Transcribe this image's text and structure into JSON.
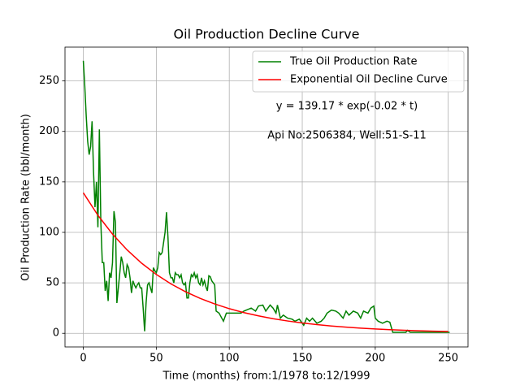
{
  "chart_data": {
    "type": "line",
    "title": "Oil Production Decline Curve",
    "x_label": "Time (months) from:1/1978 to:12/1999",
    "y_label": "Oil Production Rate (bbl/month)",
    "annotations": [
      "y = 139.17 * exp(-0.02 * t)",
      "Api No:2506384, Well:51-S-11"
    ],
    "xlim": [
      -12.55,
      263.55
    ],
    "xticks": [
      0,
      50,
      100,
      150,
      200,
      250
    ],
    "ylim": [
      -13.5,
      283.5
    ],
    "yticks": [
      0,
      50,
      100,
      150,
      200,
      250
    ],
    "grid": true,
    "legend": "upper right",
    "series": [
      {
        "name": "True Oil Production Rate",
        "color": "#008000",
        "x": [
          0,
          1,
          2,
          3,
          4,
          5,
          6,
          7,
          8,
          9,
          10,
          11,
          12,
          13,
          14,
          15,
          16,
          17,
          18,
          19,
          20,
          21,
          22,
          23,
          24,
          25,
          26,
          27,
          28,
          29,
          30,
          31,
          32,
          33,
          34,
          35,
          36,
          37,
          38,
          39,
          40,
          41,
          42,
          43,
          44,
          45,
          46,
          47,
          48,
          49,
          50,
          51,
          52,
          53,
          54,
          55,
          56,
          57,
          58,
          59,
          60,
          61,
          62,
          63,
          64,
          65,
          66,
          67,
          68,
          69,
          70,
          71,
          72,
          73,
          74,
          75,
          76,
          77,
          78,
          79,
          80,
          81,
          82,
          83,
          84,
          85,
          86,
          87,
          88,
          89,
          90,
          91,
          93,
          96,
          98,
          100,
          104,
          108,
          110,
          115,
          118,
          120,
          123,
          125,
          128,
          130,
          132,
          133,
          135,
          137,
          140,
          143,
          145,
          148,
          150,
          151,
          153,
          155,
          157,
          160,
          163,
          165,
          167,
          170,
          173,
          175,
          178,
          180,
          182,
          185,
          188,
          190,
          192,
          195,
          197,
          199,
          200,
          202,
          205,
          208,
          210,
          212,
          215,
          218,
          221,
          222,
          224,
          251
        ],
        "values": [
          270,
          245,
          215,
          190,
          177,
          185,
          210,
          160,
          125,
          150,
          105,
          202,
          110,
          70,
          70,
          42,
          52,
          32,
          60,
          55,
          70,
          121,
          110,
          30,
          45,
          60,
          76,
          70,
          60,
          55,
          68,
          65,
          55,
          40,
          52,
          48,
          45,
          48,
          50,
          45,
          45,
          25,
          2,
          30,
          48,
          50,
          45,
          40,
          65,
          62,
          60,
          65,
          80,
          78,
          80,
          90,
          100,
          120,
          95,
          60,
          55,
          55,
          50,
          60,
          58,
          58,
          55,
          58,
          50,
          48,
          50,
          35,
          35,
          50,
          58,
          56,
          60,
          55,
          58,
          50,
          48,
          55,
          48,
          52,
          46,
          42,
          57,
          56,
          52,
          50,
          48,
          22,
          20,
          12,
          20,
          20,
          20,
          20,
          22,
          25,
          22,
          27,
          28,
          22,
          28,
          25,
          20,
          28,
          15,
          18,
          15,
          14,
          12,
          14,
          10,
          8,
          15,
          12,
          15,
          10,
          12,
          15,
          20,
          23,
          22,
          20,
          15,
          22,
          18,
          22,
          20,
          15,
          22,
          20,
          25,
          27,
          15,
          12,
          10,
          12,
          11,
          1,
          1,
          1,
          1,
          3,
          1,
          1
        ]
      },
      {
        "name": "Exponential Oil Decline Curve",
        "color": "#ff0000",
        "x": [
          0,
          10,
          20,
          30,
          40,
          50,
          60,
          70,
          80,
          90,
          100,
          110,
          120,
          130,
          140,
          150,
          160,
          170,
          180,
          190,
          200,
          210,
          220,
          230,
          240,
          250
        ],
        "values": [
          139.2,
          116.9,
          98.3,
          82.6,
          69.4,
          58.3,
          49.0,
          41.2,
          34.6,
          29.1,
          24.4,
          20.5,
          17.3,
          14.5,
          12.2,
          10.2,
          8.6,
          7.2,
          6.1,
          5.1,
          4.3,
          3.6,
          3.0,
          2.5,
          2.1,
          1.8
        ]
      }
    ]
  }
}
